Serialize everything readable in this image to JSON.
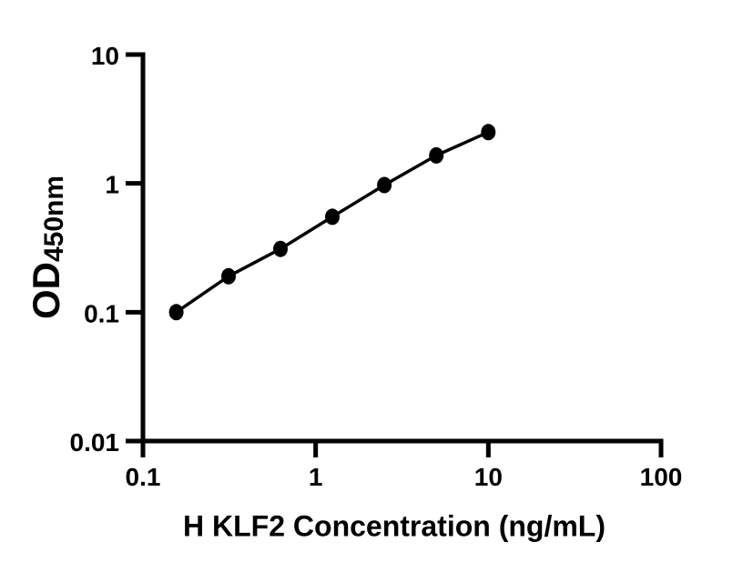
{
  "chart_data": {
    "type": "line",
    "xlabel": "H KLF2 Concentration (ng/mL)",
    "ylabel": "OD",
    "ylabel_subscript": "450nm",
    "x": [
      0.156,
      0.313,
      0.625,
      1.25,
      2.5,
      5,
      10
    ],
    "y": [
      0.1,
      0.19,
      0.31,
      0.55,
      0.97,
      1.65,
      2.5
    ],
    "xscale": "log",
    "yscale": "log",
    "xlim": [
      0.1,
      100
    ],
    "ylim": [
      0.01,
      10
    ],
    "xticks": [
      0.1,
      1,
      10,
      100
    ],
    "xtick_labels": [
      "0.1",
      "1",
      "10",
      "100"
    ],
    "yticks": [
      10,
      1,
      0.1,
      0.01
    ],
    "ytick_labels": [
      "10",
      "1",
      "0.1",
      "0.01"
    ],
    "grid": false,
    "legend": false,
    "marker": "filled-circle",
    "axis_color": "#000000",
    "line_color": "#000000",
    "marker_color": "#000000",
    "background_color": "#ffffff"
  }
}
